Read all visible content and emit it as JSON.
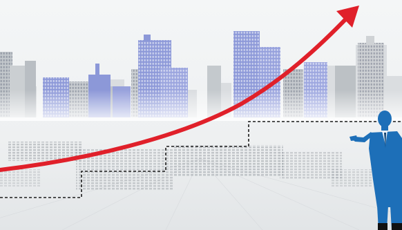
{
  "scene": {
    "description_free": true,
    "colors": {
      "background_top": "#f4f6f7",
      "background_bottom": "#e3e6e8",
      "building_blue": "#8c98d8",
      "building_grey": "#c5c9cc",
      "building_light": "#d9dcdf",
      "arrow": "#e0202a",
      "steps": "#1a1a1a",
      "businessman": "#1d6fb8",
      "reflection": "#9aa0a6"
    },
    "icons": {
      "arrow": "growth-arrow-icon",
      "person": "businessman-silhouette-icon"
    }
  }
}
